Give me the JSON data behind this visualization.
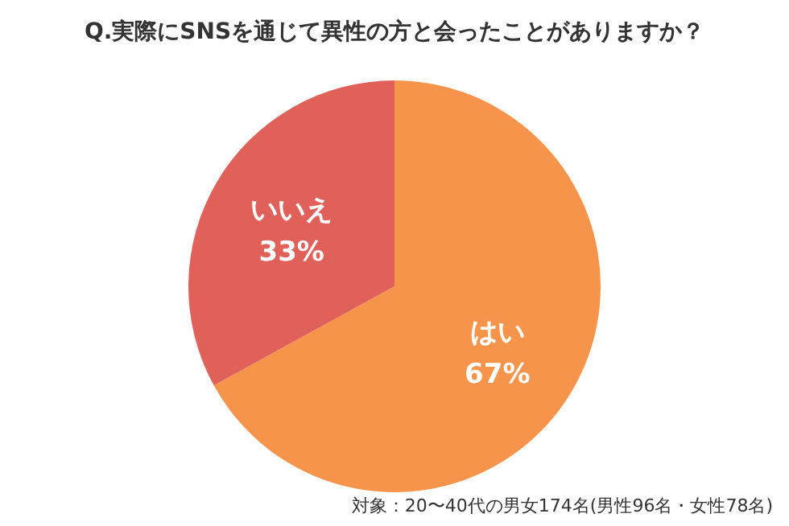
{
  "chart_data": {
    "type": "pie",
    "title": "Q.実際にSNSを通じて異性の方と会ったことがありますか？",
    "categories": [
      "はい",
      "いいえ"
    ],
    "values": [
      67,
      33
    ],
    "colors": [
      "#f7944c",
      "#e0605a"
    ],
    "value_labels": [
      "67%",
      "33%"
    ],
    "annotations": [
      "対象：20〜40代の男女174名(男性96名・女性78名)"
    ]
  }
}
